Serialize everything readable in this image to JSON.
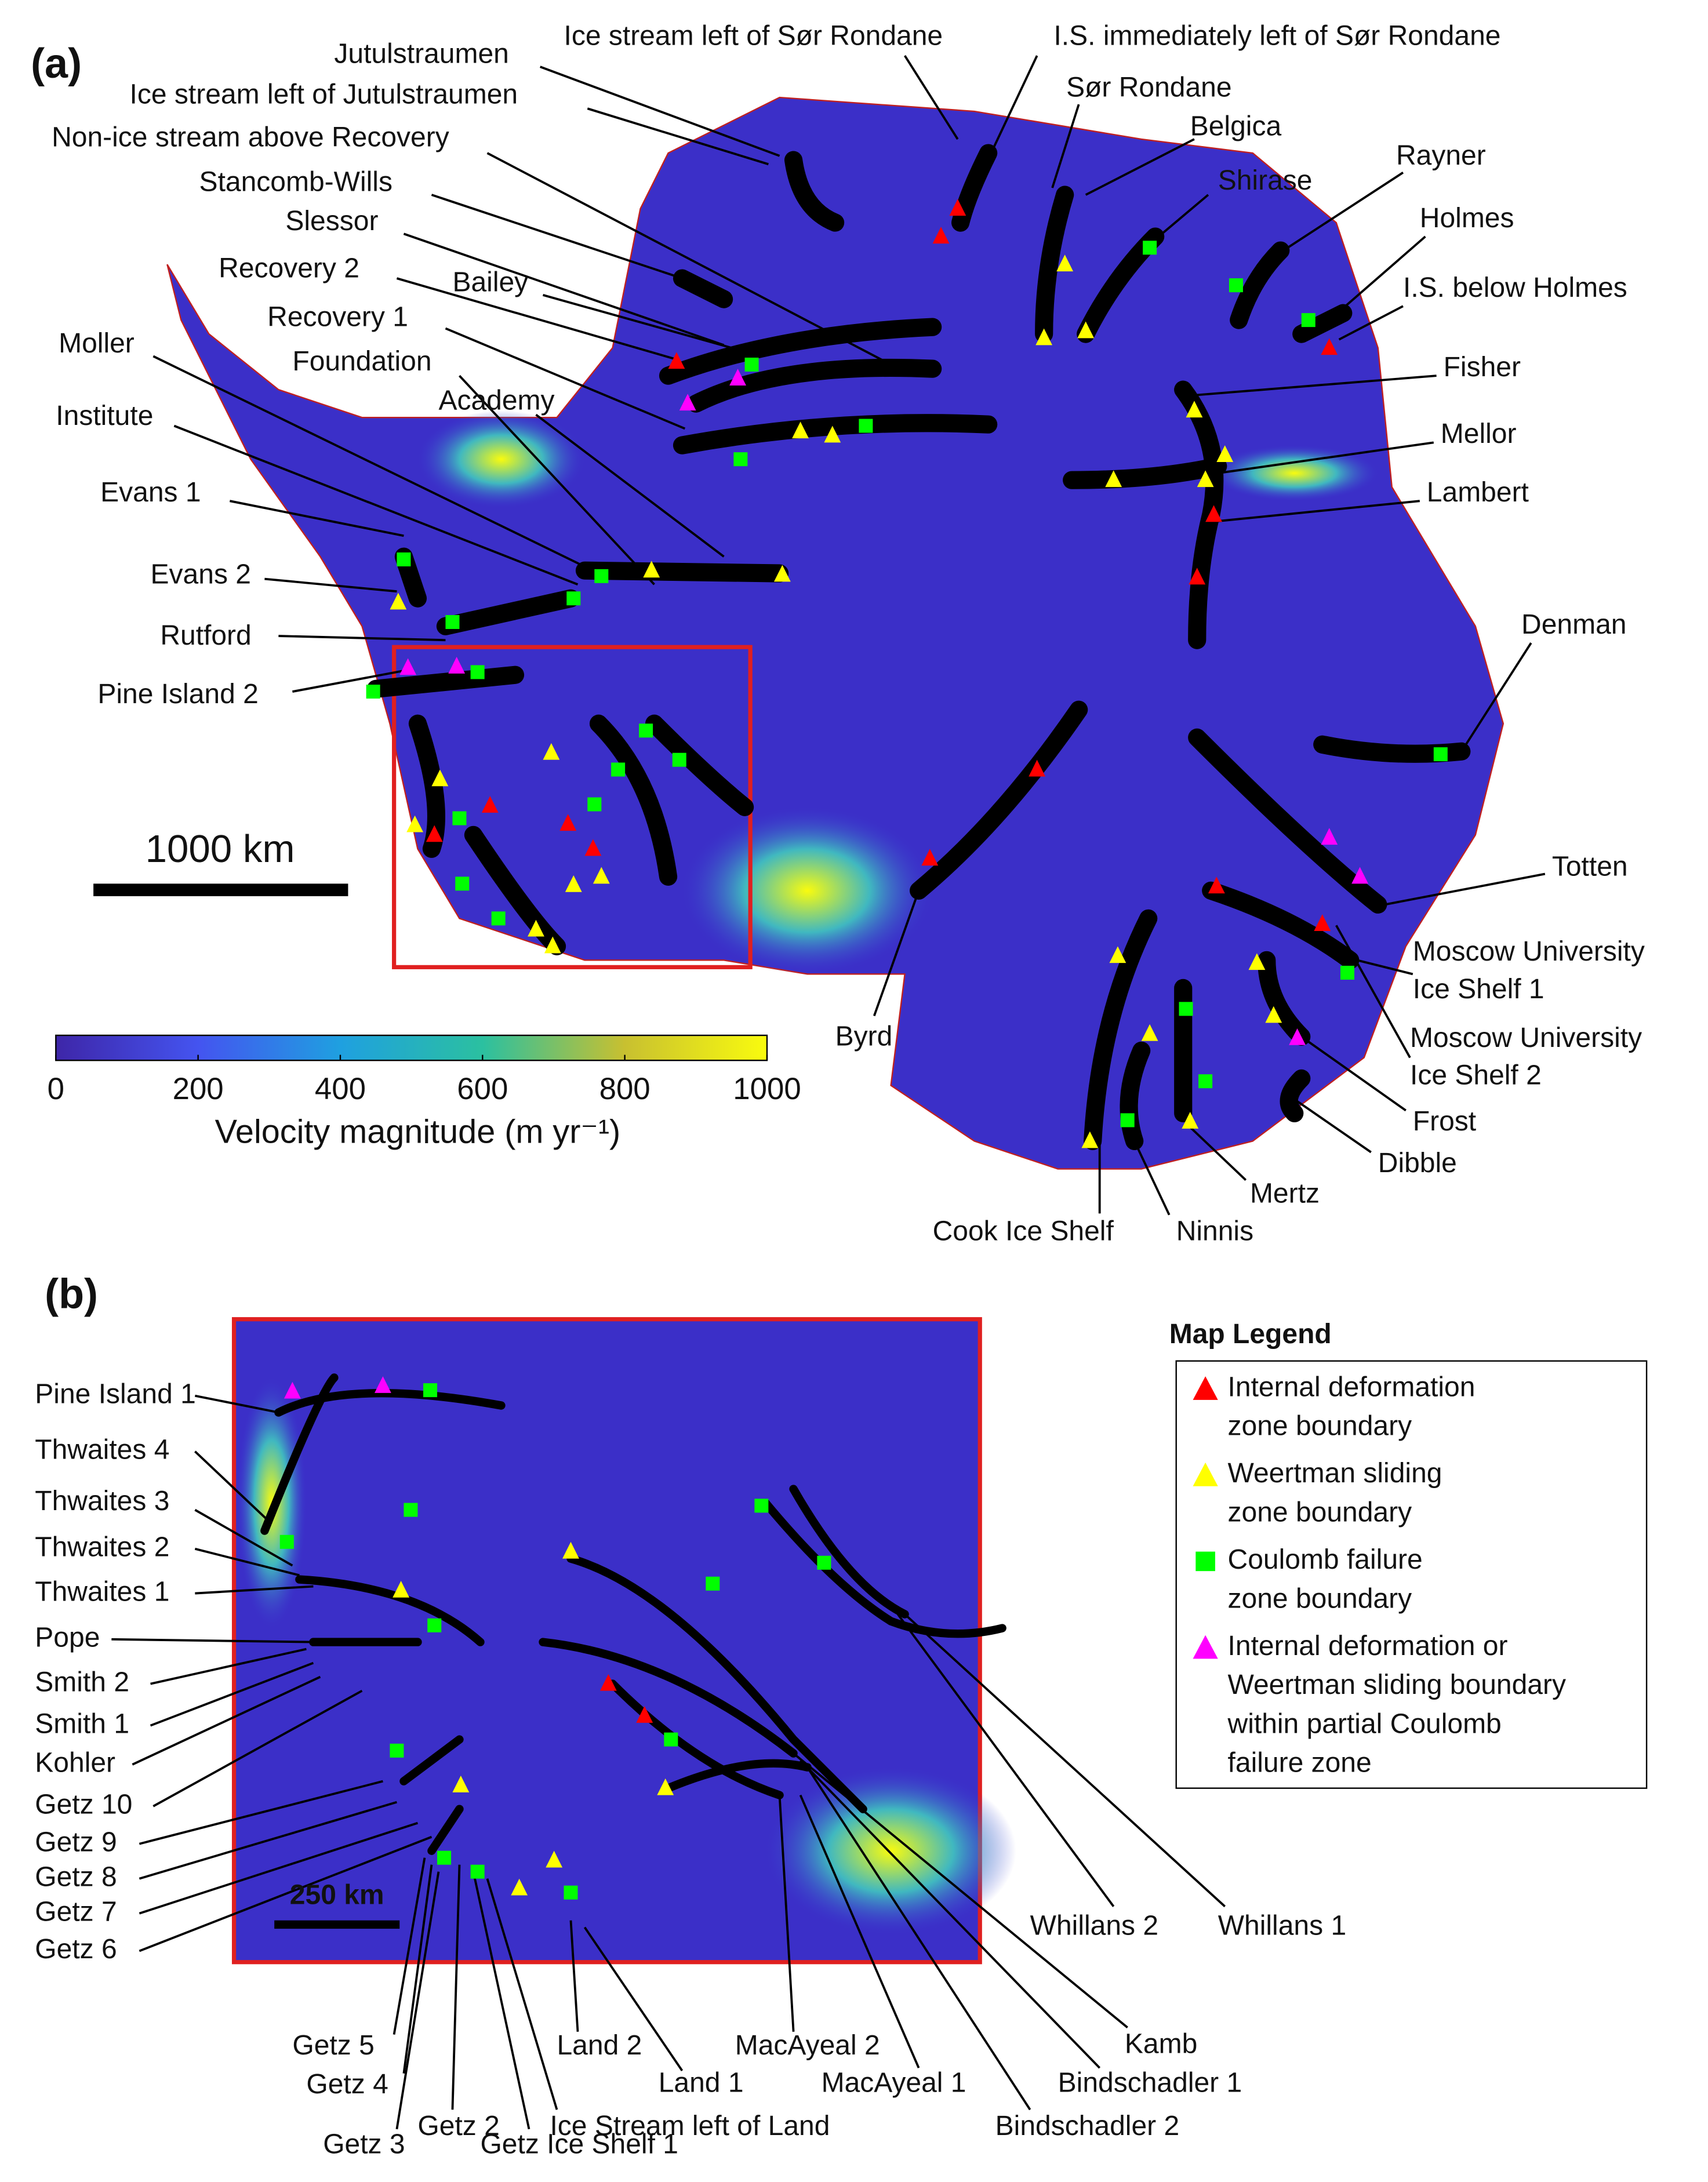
{
  "panel_a": {
    "tag": "(a)",
    "labels": [
      [
        "Jutulstraumen"
      ],
      [
        "Ice stream left of Sør Rondane"
      ],
      [
        "I.S. immediately left of Sør Rondane"
      ],
      [
        "Ice stream left of Jutulstraumen"
      ],
      [
        "Sør Rondane"
      ],
      [
        "Belgica"
      ],
      [
        "Non-ice stream above Recovery"
      ],
      [
        "Shirase"
      ],
      [
        "Rayner"
      ],
      [
        "Stancomb-Wills"
      ],
      [
        "Holmes"
      ],
      [
        "Slessor"
      ],
      [
        "I.S. below Holmes"
      ],
      [
        "Recovery 2"
      ],
      [
        "Bailey"
      ],
      [
        "Recovery 1"
      ],
      [
        "Moller"
      ],
      [
        "Fisher"
      ],
      [
        "Foundation"
      ],
      [
        "Academy"
      ],
      [
        "Institute"
      ],
      [
        "Mellor"
      ],
      [
        "Lambert"
      ],
      [
        "Evans 1"
      ],
      [
        "Evans 2"
      ],
      [
        "Rutford"
      ],
      [
        "Denman"
      ],
      [
        "Pine Island 2"
      ],
      [
        "Totten"
      ],
      [
        "Moscow University",
        "Ice Shelf 1"
      ],
      [
        "Byrd"
      ],
      [
        "Moscow University",
        "Ice Shelf 2"
      ],
      [
        "Frost"
      ],
      [
        "Dibble"
      ],
      [
        "Mertz"
      ],
      [
        "Ninnis"
      ],
      [
        "Cook Ice Shelf"
      ]
    ],
    "scale_bar": "1000 km",
    "colorbar": {
      "title": "Velocity magnitude (m yr⁻¹)",
      "lim": [
        0,
        1000
      ],
      "ticks": [
        0,
        200,
        400,
        600,
        800,
        1000
      ]
    }
  },
  "panel_b": {
    "tag": "(b)",
    "labels": [
      [
        "Pine Island 1"
      ],
      [
        "Thwaites 4"
      ],
      [
        "Thwaites 3"
      ],
      [
        "Thwaites 2"
      ],
      [
        "Thwaites 1"
      ],
      [
        "Pope"
      ],
      [
        "Smith 2"
      ],
      [
        "Smith 1"
      ],
      [
        "Kohler"
      ],
      [
        "Getz 10"
      ],
      [
        "Getz 9"
      ],
      [
        "Getz 8"
      ],
      [
        "Getz 7"
      ],
      [
        "Getz 6"
      ],
      [
        "Getz 5"
      ],
      [
        "Getz 4"
      ],
      [
        "Getz 3"
      ],
      [
        "Getz 2"
      ],
      [
        "Getz Ice Shelf 1"
      ],
      [
        "Ice Stream left of Land"
      ],
      [
        "Land 2"
      ],
      [
        "Land 1"
      ],
      [
        "MacAyeal 2"
      ],
      [
        "MacAyeal 1"
      ],
      [
        "Bindschadler 2"
      ],
      [
        "Bindschadler 1"
      ],
      [
        "Kamb"
      ],
      [
        "Whillans 2"
      ],
      [
        "Whillans 1"
      ]
    ],
    "scale_bar": "250 km"
  },
  "legend": {
    "title": "Map Legend",
    "items": [
      {
        "lines": [
          "Internal deformation",
          "zone boundary"
        ],
        "shape": "triangle",
        "color": "#ff0000"
      },
      {
        "lines": [
          "Weertman sliding",
          "zone boundary"
        ],
        "shape": "triangle",
        "color": "#ffff00"
      },
      {
        "lines": [
          "Coulomb failure",
          "zone boundary"
        ],
        "shape": "square",
        "color": "#00ff00"
      },
      {
        "lines": [
          "Internal deformation or",
          "Weertman sliding boundary",
          "within partial Coulomb",
          "failure zone"
        ],
        "shape": "triangle",
        "color": "#ff00ff"
      }
    ]
  }
}
